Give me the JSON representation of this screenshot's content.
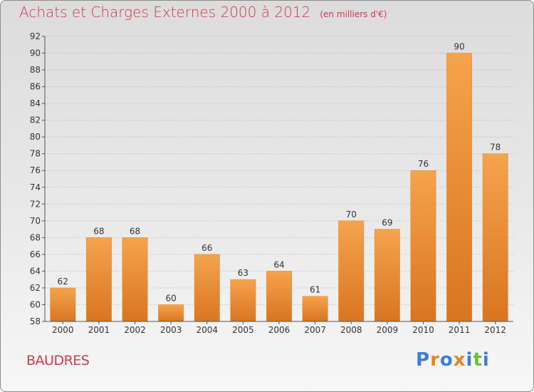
{
  "title": "Achats et Charges Externes 2000 à 2012",
  "unit": "(en milliers d'€)",
  "commune": "BAUDRES",
  "logo": {
    "text": "Proxiti",
    "letter_colors": [
      "#3b7fd9",
      "#e8841f",
      "#3b7fd9",
      "#e8841f",
      "#3b7fd9",
      "#6fbf2c",
      "#3b7fd9"
    ]
  },
  "colors": {
    "title": "#d2384e",
    "bar_light": "#f5a34e",
    "bar_dark": "#d97520"
  },
  "chart_data": {
    "type": "bar",
    "categories": [
      "2000",
      "2001",
      "2002",
      "2003",
      "2004",
      "2005",
      "2006",
      "2007",
      "2008",
      "2009",
      "2010",
      "2011",
      "2012"
    ],
    "values": [
      62,
      68,
      68,
      60,
      66,
      63,
      64,
      61,
      70,
      69,
      76,
      90,
      78
    ],
    "ylim": [
      58,
      92
    ],
    "yticks": [
      58,
      60,
      62,
      64,
      66,
      68,
      70,
      72,
      74,
      76,
      78,
      80,
      82,
      84,
      86,
      88,
      90,
      92
    ],
    "grid": true,
    "xlabel": "",
    "ylabel": ""
  }
}
